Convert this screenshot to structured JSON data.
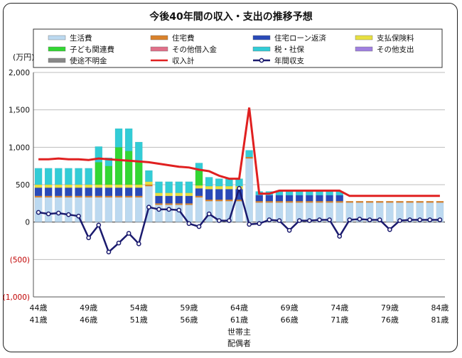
{
  "chart_data": {
    "type": "bar",
    "title": "今後40年間の収入・支出の推移予想",
    "ylabel": "(万円)",
    "ylim": [
      -1000,
      2000
    ],
    "yticks": [
      -1000,
      -500,
      0,
      500,
      1000,
      1500,
      2000
    ],
    "ytick_labels": [
      "(1,000)",
      "(500)",
      "0",
      "500",
      "1,000",
      "1,500",
      "2,000"
    ],
    "grid": true,
    "legend_position": "top",
    "x_label_row1": [
      "44歳",
      "49歳",
      "54歳",
      "59歳",
      "64歳",
      "69歳",
      "74歳",
      "79歳",
      "84歳"
    ],
    "x_label_row2": [
      "41歳",
      "46歳",
      "51歳",
      "56歳",
      "61歳",
      "66歳",
      "71歳",
      "76歳",
      "81歳"
    ],
    "x_label_every": 5,
    "row_titles": [
      "世帯主",
      "配偶者"
    ],
    "row_titles_at_index": 20,
    "categories": [
      "44歳",
      "45歳",
      "46歳",
      "47歳",
      "48歳",
      "49歳",
      "50歳",
      "51歳",
      "52歳",
      "53歳",
      "54歳",
      "55歳",
      "56歳",
      "57歳",
      "58歳",
      "59歳",
      "60歳",
      "61歳",
      "62歳",
      "63歳",
      "64歳",
      "65歳",
      "66歳",
      "67歳",
      "68歳",
      "69歳",
      "70歳",
      "71歳",
      "72歳",
      "73歳",
      "74歳",
      "75歳",
      "76歳",
      "77歳",
      "78歳",
      "79歳",
      "80歳",
      "81歳",
      "82歳",
      "83歳",
      "84歳"
    ],
    "stack_series": [
      {
        "name": "生活費",
        "color": "#bcd9f0",
        "values": [
          330,
          330,
          330,
          330,
          330,
          330,
          330,
          330,
          330,
          330,
          330,
          480,
          230,
          230,
          230,
          230,
          330,
          280,
          280,
          280,
          280,
          850,
          260,
          260,
          260,
          260,
          260,
          260,
          260,
          260,
          260,
          260,
          260,
          260,
          260,
          260,
          260,
          260,
          260,
          260,
          260
        ]
      },
      {
        "name": "住宅費",
        "color": "#d9822b",
        "values": [
          20,
          20,
          20,
          20,
          20,
          20,
          20,
          20,
          20,
          20,
          20,
          20,
          20,
          20,
          20,
          20,
          20,
          20,
          20,
          20,
          20,
          20,
          20,
          20,
          20,
          20,
          20,
          20,
          20,
          20,
          20,
          20,
          20,
          20,
          20,
          20,
          20,
          20,
          20,
          20,
          20
        ]
      },
      {
        "name": "住宅ローン返済",
        "color": "#2a4ab8",
        "values": [
          110,
          110,
          110,
          110,
          110,
          110,
          110,
          110,
          110,
          110,
          110,
          0,
          100,
          100,
          100,
          100,
          100,
          140,
          140,
          140,
          140,
          0,
          80,
          80,
          80,
          80,
          80,
          80,
          80,
          80,
          80,
          0,
          0,
          0,
          0,
          0,
          0,
          0,
          0,
          0,
          0
        ]
      },
      {
        "name": "支払保険料",
        "color": "#e8e040",
        "values": [
          40,
          40,
          40,
          40,
          40,
          40,
          40,
          40,
          40,
          40,
          40,
          40,
          40,
          40,
          40,
          40,
          40,
          40,
          40,
          40,
          40,
          0,
          0,
          0,
          0,
          0,
          0,
          0,
          0,
          0,
          0,
          0,
          0,
          0,
          0,
          0,
          0,
          0,
          0,
          0,
          0
        ]
      },
      {
        "name": "子ども関連費",
        "color": "#33d633",
        "values": [
          0,
          0,
          0,
          0,
          0,
          0,
          300,
          250,
          500,
          450,
          300,
          0,
          0,
          0,
          0,
          0,
          200,
          0,
          0,
          0,
          0,
          0,
          0,
          0,
          0,
          0,
          0,
          0,
          0,
          0,
          0,
          0,
          0,
          0,
          0,
          0,
          0,
          0,
          0,
          0,
          0
        ]
      },
      {
        "name": "その他借入金",
        "color": "#e0708a",
        "values": [
          0,
          0,
          0,
          0,
          0,
          0,
          0,
          0,
          0,
          0,
          0,
          0,
          0,
          0,
          0,
          0,
          0,
          0,
          0,
          0,
          0,
          0,
          0,
          0,
          0,
          0,
          0,
          0,
          0,
          0,
          0,
          0,
          0,
          0,
          0,
          0,
          0,
          0,
          0,
          0,
          0
        ]
      },
      {
        "name": "税・社保",
        "color": "#33ccd6",
        "values": [
          220,
          220,
          220,
          220,
          220,
          220,
          210,
          110,
          250,
          300,
          270,
          150,
          150,
          150,
          150,
          150,
          100,
          120,
          100,
          100,
          100,
          90,
          50,
          50,
          50,
          50,
          50,
          50,
          50,
          50,
          50,
          0,
          0,
          0,
          0,
          0,
          0,
          0,
          0,
          0,
          0
        ]
      },
      {
        "name": "その他支出",
        "color": "#a080e0",
        "values": [
          0,
          0,
          0,
          0,
          0,
          0,
          0,
          0,
          0,
          0,
          0,
          0,
          0,
          0,
          0,
          0,
          0,
          0,
          0,
          0,
          0,
          0,
          0,
          0,
          0,
          0,
          0,
          0,
          0,
          0,
          0,
          0,
          0,
          0,
          0,
          0,
          0,
          0,
          0,
          0,
          0
        ]
      },
      {
        "name": "使途不明金",
        "color": "#888888",
        "values": [
          0,
          0,
          0,
          0,
          0,
          0,
          0,
          0,
          0,
          0,
          0,
          0,
          0,
          0,
          0,
          0,
          0,
          0,
          0,
          0,
          0,
          0,
          0,
          0,
          0,
          0,
          0,
          0,
          0,
          0,
          0,
          0,
          0,
          0,
          0,
          0,
          0,
          0,
          0,
          0,
          0
        ]
      }
    ],
    "line_series": [
      {
        "name": "収入計",
        "color": "#e02020",
        "values": [
          840,
          840,
          850,
          840,
          840,
          830,
          850,
          840,
          830,
          820,
          810,
          800,
          780,
          760,
          740,
          730,
          700,
          680,
          620,
          580,
          580,
          1530,
          380,
          380,
          420,
          420,
          420,
          420,
          420,
          420,
          420,
          350,
          350,
          350,
          350,
          350,
          350,
          350,
          350,
          350,
          350
        ]
      },
      {
        "name": "年間収支",
        "color": "#1a1a6e",
        "values": [
          130,
          110,
          120,
          100,
          80,
          -210,
          -40,
          -400,
          -280,
          -150,
          -290,
          200,
          170,
          170,
          160,
          -20,
          -60,
          110,
          20,
          20,
          450,
          -30,
          -20,
          30,
          20,
          -110,
          20,
          20,
          30,
          30,
          -190,
          30,
          40,
          30,
          30,
          -100,
          20,
          30,
          30,
          30,
          30
        ]
      }
    ],
    "legend_layout": [
      "生活費",
      "住宅費",
      "住宅ローン返済",
      "支払保険料",
      "子ども関連費",
      "その他借入金",
      "税・社保",
      "その他支出",
      "使途不明金",
      "収入計",
      "年間収支"
    ]
  }
}
